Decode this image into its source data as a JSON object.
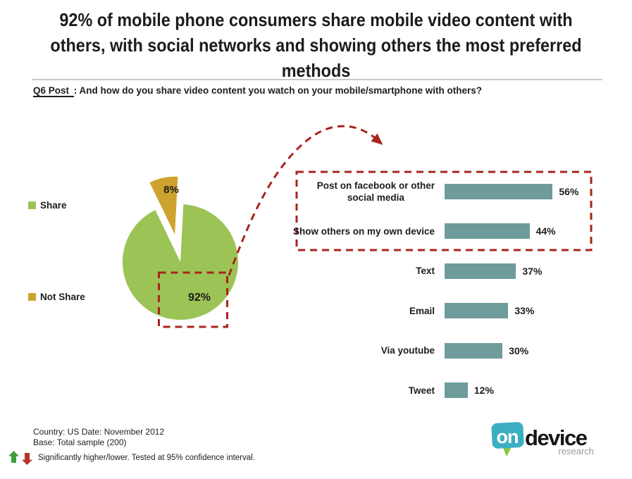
{
  "header": {
    "title": "92% of mobile phone consumers share mobile video content with\nothers, with social networks and showing others the most preferred\nmethods",
    "question_label": "Q6 Post ",
    "question_text": ": And how do you share video content you watch on your mobile/smartphone with others?"
  },
  "legend": {
    "items": [
      {
        "label": "Share",
        "color": "#9CC355"
      },
      {
        "label": "Not Share",
        "color": "#CEA22E"
      }
    ]
  },
  "chart_data": [
    {
      "type": "pie",
      "slices": [
        {
          "label": "Share",
          "value": 92,
          "display": "92%",
          "color": "#9CC355",
          "exploded": false
        },
        {
          "label": "Not Share",
          "value": 8,
          "display": "8%",
          "color": "#CEA22E",
          "exploded": true
        }
      ],
      "start_angle_deg": 3,
      "unit": "%",
      "legend_position": "left"
    },
    {
      "type": "bar",
      "orientation": "horizontal",
      "categories": [
        "Post on facebook or other\nsocial media",
        "Show others on my own device",
        "Text",
        "Email",
        "Via youtube",
        "Tweet"
      ],
      "values": [
        56,
        44,
        37,
        33,
        30,
        12
      ],
      "unit": "%",
      "bar_color": "#6D9C9B",
      "xlim": [
        0,
        100
      ],
      "grid": false,
      "data_labels": [
        "56%",
        "44%",
        "37%",
        "33%",
        "30%",
        "12%"
      ],
      "highlighted_categories": [
        "Post on facebook or other social media",
        "Show others on my own device"
      ]
    }
  ],
  "footer": {
    "country_line": "Country: US Date: November  2012",
    "base_line": "Base: Total sample (200)",
    "significance_note": "Significantly higher/lower. Tested at 95% confidence interval.",
    "up_arrow_color": "#3F9E3F",
    "down_arrow_color": "#B5352B"
  },
  "logo": {
    "on": "on",
    "device": "device",
    "research": "research",
    "bubble_color": "#3BAEC3",
    "tail_color": "#8DC63F"
  },
  "colors": {
    "accent_dashed_red": "#A8251E",
    "divider_gray": "#C9C9C9"
  }
}
